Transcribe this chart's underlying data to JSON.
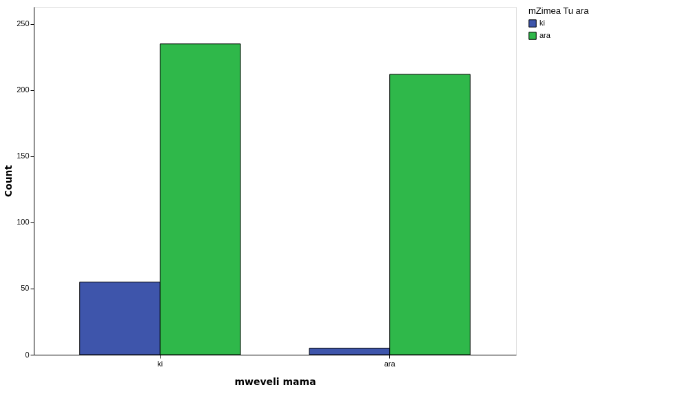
{
  "chart_data": {
    "type": "bar",
    "xlabel": "mweveli mama",
    "ylabel": "Count",
    "legend_title": "mZimea Tu ara",
    "categories": [
      "ki",
      "ara"
    ],
    "series": [
      {
        "name": "ki",
        "color": "#3e55ab",
        "values": [
          55,
          5
        ]
      },
      {
        "name": "ara",
        "color": "#2fb84a",
        "values": [
          235,
          212
        ]
      }
    ],
    "ylim": [
      0,
      263
    ],
    "yticks": [
      0,
      50,
      100,
      150,
      200,
      250
    ],
    "grid": false,
    "legend": "top right"
  }
}
